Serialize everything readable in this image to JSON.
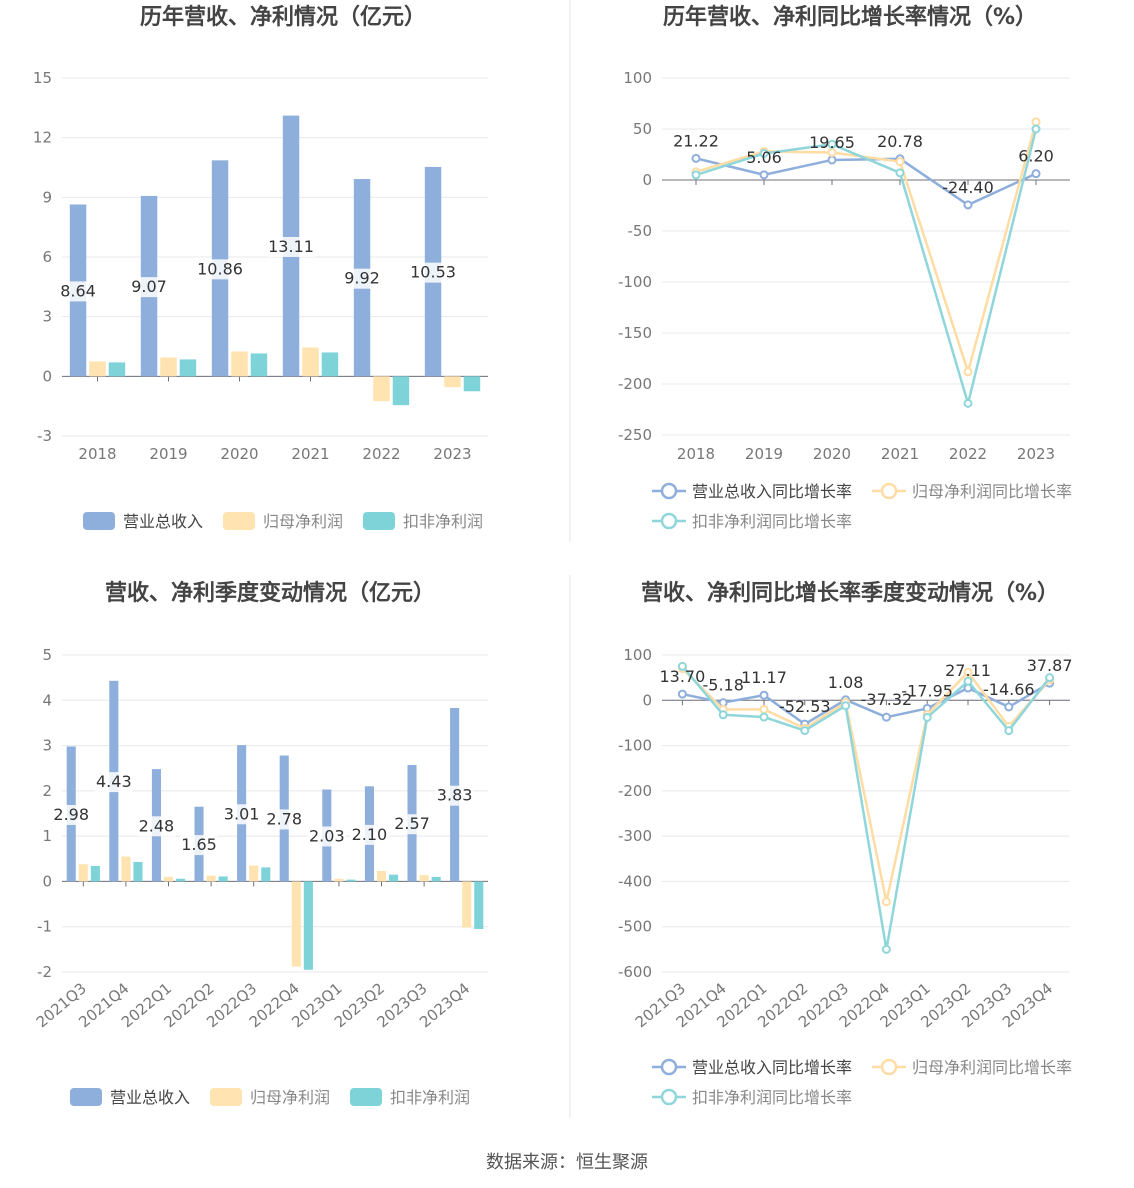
{
  "source": "数据来源：恒生聚源",
  "colors": {
    "revenue": "#8eaedc",
    "net_profit": "#ffe3b0",
    "deducted_profit": "#7dd3d8",
    "revenue_line": "#8eaedc",
    "net_line": "#ffdca3",
    "deducted_line": "#8fd6db"
  },
  "chart_data": [
    {
      "type": "bar",
      "title": "历年营收、净利情况（亿元）",
      "categories": [
        "2018",
        "2019",
        "2020",
        "2021",
        "2022",
        "2023"
      ],
      "ylim": [
        -3,
        15
      ],
      "yticks": [
        -3,
        0,
        3,
        6,
        9,
        12,
        15
      ],
      "legend": "bottom",
      "series": [
        {
          "name": "营业总收入",
          "values": [
            8.64,
            9.07,
            10.86,
            13.11,
            9.92,
            10.53
          ],
          "labels": [
            "8.64",
            "9.07",
            "10.86",
            "13.11",
            "9.92",
            "10.53"
          ]
        },
        {
          "name": "归母净利润",
          "values": [
            0.75,
            0.95,
            1.25,
            1.45,
            -1.25,
            -0.55
          ]
        },
        {
          "name": "扣非净利润",
          "values": [
            0.7,
            0.85,
            1.15,
            1.2,
            -1.45,
            -0.75
          ]
        }
      ]
    },
    {
      "type": "line",
      "title": "历年营收、净利同比增长率情况（%）",
      "categories": [
        "2018",
        "2019",
        "2020",
        "2021",
        "2022",
        "2023"
      ],
      "ylim": [
        -250,
        100
      ],
      "yticks": [
        -250,
        -200,
        -150,
        -100,
        -50,
        0,
        50,
        100
      ],
      "legend": "bottom",
      "series": [
        {
          "name": "营业总收入同比增长率",
          "values": [
            21.22,
            5.06,
            19.65,
            20.78,
            -24.4,
            6.2
          ],
          "labels": [
            "21.22",
            "5.06",
            "19.65",
            "20.78",
            "-24.40",
            "6.20"
          ]
        },
        {
          "name": "归母净利润同比增长率",
          "values": [
            8,
            28,
            27,
            18,
            -188,
            57
          ]
        },
        {
          "name": "扣非净利润同比增长率",
          "values": [
            5,
            26,
            35,
            7,
            -219,
            50
          ]
        }
      ]
    },
    {
      "type": "bar",
      "title": "营收、净利季度变动情况（亿元）",
      "categories": [
        "2021Q3",
        "2021Q4",
        "2022Q1",
        "2022Q2",
        "2022Q3",
        "2022Q4",
        "2023Q1",
        "2023Q2",
        "2023Q3",
        "2023Q4"
      ],
      "ylim": [
        -2,
        5
      ],
      "yticks": [
        -2,
        -1,
        0,
        1,
        2,
        3,
        4,
        5
      ],
      "legend": "bottom",
      "series": [
        {
          "name": "营业总收入",
          "values": [
            2.98,
            4.43,
            2.48,
            1.65,
            3.01,
            2.78,
            2.03,
            2.1,
            2.57,
            3.83
          ],
          "labels": [
            "2.98",
            "4.43",
            "2.48",
            "1.65",
            "3.01",
            "2.78",
            "2.03",
            "2.10",
            "2.57",
            "3.83"
          ]
        },
        {
          "name": "归母净利润",
          "values": [
            0.38,
            0.55,
            0.1,
            0.13,
            0.35,
            -1.88,
            0.06,
            0.23,
            0.14,
            -1.02
          ]
        },
        {
          "name": "扣非净利润",
          "values": [
            0.34,
            0.43,
            0.06,
            0.11,
            0.31,
            -1.95,
            0.04,
            0.15,
            0.1,
            -1.05
          ]
        }
      ]
    },
    {
      "type": "line",
      "title": "营收、净利同比增长率季度变动情况（%）",
      "categories": [
        "2021Q3",
        "2021Q4",
        "2022Q1",
        "2022Q2",
        "2022Q3",
        "2022Q4",
        "2023Q1",
        "2023Q2",
        "2023Q3",
        "2023Q4"
      ],
      "ylim": [
        -600,
        100
      ],
      "yticks": [
        -600,
        -500,
        -400,
        -300,
        -200,
        -100,
        0,
        100
      ],
      "legend": "bottom",
      "series": [
        {
          "name": "营业总收入同比增长率",
          "values": [
            13.7,
            -5.18,
            11.17,
            -52.53,
            1.08,
            -37.32,
            -17.95,
            27.11,
            -14.66,
            37.87
          ],
          "labels": [
            "13.70",
            "-5.18",
            "11.17",
            "-52.53",
            "1.08",
            "-37.32",
            "-17.95",
            "27.11",
            "-14.66",
            "37.87"
          ]
        },
        {
          "name": "归母净利润同比增长率",
          "values": [
            70,
            -20,
            -20,
            -62,
            -5,
            -445,
            -32,
            62,
            -58,
            45
          ]
        },
        {
          "name": "扣非净利润同比增长率",
          "values": [
            75,
            -32,
            -37,
            -67,
            -12,
            -550,
            -38,
            42,
            -67,
            50
          ]
        }
      ]
    }
  ]
}
